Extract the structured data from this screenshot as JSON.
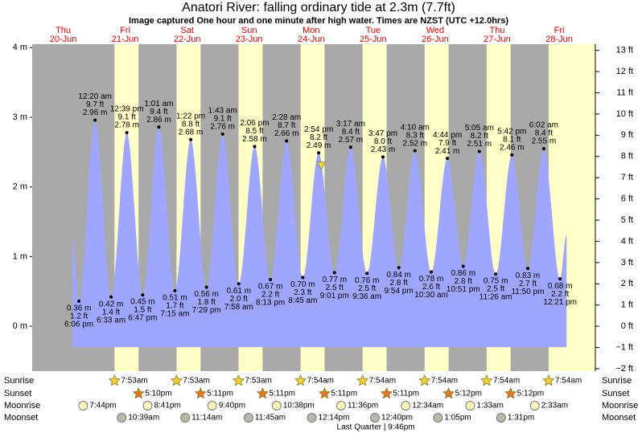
{
  "chart_data": {
    "type": "tide",
    "title": "Anatori River: falling  ordinary tide at 2.3m (7.7ft)",
    "subtitle": "Image captured One hour and one minute after high water. Times are NZST (UTC +12.0hrs)",
    "weekdays": [
      "Thu",
      "Fri",
      "Sat",
      "Sun",
      "Mon",
      "Tue",
      "Wed",
      "Thu",
      "Fri"
    ],
    "dates": [
      "20-Jun",
      "21-Jun",
      "22-Jun",
      "23-Jun",
      "24-Jun",
      "25-Jun",
      "26-Jun",
      "27-Jun",
      "28-Jun"
    ],
    "xlim": [
      0,
      218
    ],
    "ylim": [
      -0.645,
      4.05
    ],
    "yticks": [
      {
        "value": 4,
        "label": "4 m"
      },
      {
        "value": 3,
        "label": "3 m"
      },
      {
        "value": 2,
        "label": "2 m"
      },
      {
        "value": 1,
        "label": "1 m"
      },
      {
        "value": 0,
        "label": "0 m"
      }
    ],
    "y2lim": [
      -2.116,
      13.29
    ],
    "y2ticks": [
      {
        "value": 13,
        "label": "13 ft"
      },
      {
        "value": 12,
        "label": "12 ft"
      },
      {
        "value": 11,
        "label": "11 ft"
      },
      {
        "value": 10,
        "label": "10 ft"
      },
      {
        "value": 9,
        "label": "9 ft"
      },
      {
        "value": 8,
        "label": "8 ft"
      },
      {
        "value": 7,
        "label": "7 ft"
      },
      {
        "value": 6,
        "label": "6 ft"
      },
      {
        "value": 5,
        "label": "5 ft"
      },
      {
        "value": 4,
        "label": "4 ft"
      },
      {
        "value": 3,
        "label": "3 ft"
      },
      {
        "value": 2,
        "label": "2 ft"
      },
      {
        "value": 1,
        "label": "1 ft"
      },
      {
        "value": 0,
        "label": "0 ft"
      },
      {
        "value": -1,
        "label": "−1 ft"
      },
      {
        "value": -2,
        "label": "−2 ft"
      }
    ],
    "x": [
      18.1,
      24.33,
      30.55,
      36.65,
      42.78,
      49.02,
      55.25,
      61.37,
      67.48,
      73.72,
      79.97,
      86.1,
      92.22,
      98.47,
      104.75,
      110.9,
      117.02,
      123.28,
      129.6,
      135.78,
      141.9,
      148.17,
      154.5,
      160.73,
      166.85,
      173.08,
      179.43,
      185.7,
      191.83,
      198.03,
      204.35
    ],
    "values": [
      0.36,
      2.96,
      0.42,
      2.78,
      0.45,
      2.86,
      0.51,
      2.68,
      0.56,
      2.76,
      0.61,
      2.58,
      0.67,
      2.66,
      0.7,
      2.49,
      0.77,
      2.57,
      0.76,
      2.43,
      0.84,
      2.52,
      0.78,
      2.41,
      0.86,
      2.51,
      0.75,
      2.46,
      0.83,
      2.55,
      0.68
    ],
    "value_labels": [
      "0.36 m",
      "2.96 m",
      "0.42 m",
      "2.78 m",
      "0.45 m",
      "2.86 m",
      "0.51 m",
      "2.68 m",
      "0.56 m",
      "2.76 m",
      "0.61 m",
      "2.58 m",
      "0.67 m",
      "2.66 m",
      "0.70 m",
      "2.49 m",
      "0.77 m",
      "2.57 m",
      "0.76 m",
      "2.43 m",
      "0.84 m",
      "2.52 m",
      "0.78 m",
      "2.41 m",
      "0.86 m",
      "2.51 m",
      "0.75 m",
      "2.46 m",
      "0.83 m",
      "2.55 m",
      "0.68 m"
    ],
    "feet_labels": [
      "1.2 ft",
      "9.7 ft",
      "1.4 ft",
      "9.1 ft",
      "1.5 ft",
      "9.4 ft",
      "1.7 ft",
      "8.8 ft",
      "1.8 ft",
      "9.1 ft",
      "2.0 ft",
      "8.5 ft",
      "2.2 ft",
      "8.7 ft",
      "2.3 ft",
      "8.2 ft",
      "2.5 ft",
      "8.4 ft",
      "2.5 ft",
      "8.0 ft",
      "2.8 ft",
      "8.3 ft",
      "2.6 ft",
      "7.9 ft",
      "2.8 ft",
      "8.2 ft",
      "2.5 ft",
      "8.1 ft",
      "2.7 ft",
      "8.4 ft",
      "2.2 ft"
    ],
    "times": [
      "6:06 pm",
      "12:20 am",
      "6:33 am",
      "12:39 pm",
      "6:47 pm",
      "1:01 am",
      "7:15 am",
      "1:22 pm",
      "7:29 pm",
      "1:43 am",
      "7:58 am",
      "2:06 pm",
      "8:13 pm",
      "2:28 am",
      "8:45 am",
      "2:54 pm",
      "9:01 pm",
      "3:17 am",
      "9:36 am",
      "3:47 pm",
      "9:54 pm",
      "4:10 am",
      "10:30 am",
      "4:44 pm",
      "10:51 pm",
      "5:05 am",
      "11:26 am",
      "5:42 pm",
      "11:50 pm",
      "6:02 am",
      "12:21 pm"
    ],
    "now": {
      "x": 111.9,
      "value": 2.3
    },
    "sunrise": {
      "label": "Sunrise",
      "x": [
        31.88,
        55.88,
        79.88,
        103.9,
        127.9,
        151.9,
        175.9,
        199.9
      ],
      "times": [
        "7:53am",
        "7:53am",
        "7:53am",
        "7:54am",
        "7:54am",
        "7:54am",
        "7:54am",
        "7:54am"
      ]
    },
    "sunset": {
      "label": "Sunset",
      "x": [
        41.17,
        65.18,
        89.18,
        113.18,
        137.18,
        161.2,
        185.2
      ],
      "times": [
        "5:10pm",
        "5:11pm",
        "5:11pm",
        "5:11pm",
        "5:11pm",
        "5:12pm",
        "5:12pm"
      ]
    },
    "moonrise": {
      "label": "Moonrise",
      "x": [
        19.73,
        44.68,
        69.67,
        94.63,
        119.6,
        144.57,
        169.55,
        194.55
      ],
      "times": [
        "7:44pm",
        "8:41pm",
        "9:40pm",
        "10:38pm",
        "11:36pm",
        "12:34am",
        "1:33am",
        "2:33am"
      ]
    },
    "moonset": {
      "label": "Moonset",
      "x": [
        34.65,
        59.23,
        83.75,
        108.23,
        132.67,
        157.08,
        181.52
      ],
      "times": [
        "10:39am",
        "11:14am",
        "11:45am",
        "12:14pm",
        "12:40pm",
        "1:05pm",
        "1:31pm"
      ]
    },
    "moon_phase": {
      "text": "Last Quarter | 9:46pm",
      "x": 133
    }
  }
}
